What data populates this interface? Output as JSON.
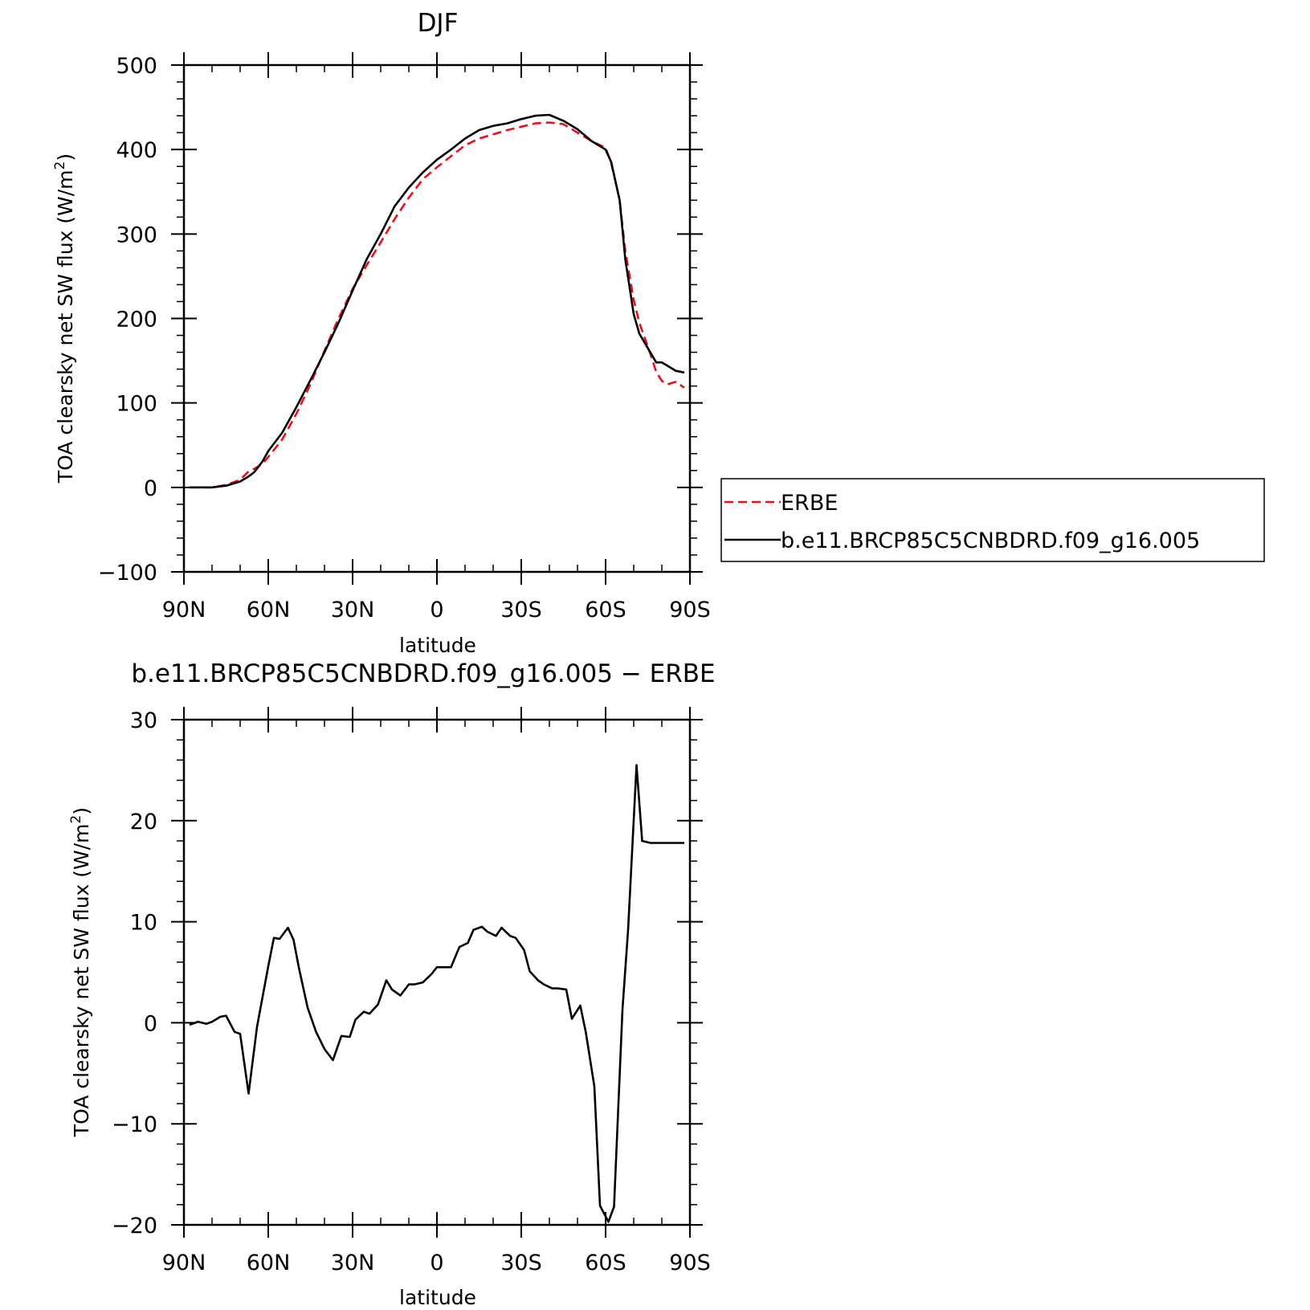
{
  "chart_data": [
    {
      "type": "line",
      "title": "DJF",
      "xlabel": "latitude",
      "ylabel": "TOA clearsky net SW flux (W/m",
      "ylabel_superscript": "2",
      "ylabel_suffix": ")",
      "xlim": [
        90,
        -90
      ],
      "ylim": [
        -100,
        500
      ],
      "x_ticks": [
        90,
        60,
        30,
        0,
        -30,
        -60,
        -90
      ],
      "x_tick_labels": [
        "90N",
        "60N",
        "30N",
        "0",
        "30S",
        "60S",
        "90S"
      ],
      "y_ticks": [
        -100,
        0,
        100,
        200,
        300,
        400,
        500
      ],
      "y_tick_labels": [
        "−100",
        "0",
        "100",
        "200",
        "300",
        "400",
        "500"
      ],
      "legend_position": "right",
      "series": [
        {
          "name": "ERBE",
          "color": "#e8101a",
          "dash": "dashed",
          "x": [
            88,
            85,
            80,
            75,
            70,
            67,
            65,
            62,
            60,
            55,
            50,
            45,
            40,
            35,
            30,
            25,
            20,
            15,
            10,
            5,
            0,
            -5,
            -10,
            -15,
            -20,
            -25,
            -30,
            -35,
            -40,
            -45,
            -50,
            -55,
            -60,
            -62,
            -65,
            -67,
            -70,
            -72,
            -75,
            -78,
            -80,
            -82,
            -85,
            -88
          ],
          "y": [
            0,
            0,
            0,
            3,
            9,
            19,
            22,
            28,
            36,
            57,
            87,
            122,
            162,
            200,
            235,
            263,
            290,
            318,
            343,
            365,
            379,
            392,
            405,
            413,
            418,
            423,
            427,
            431,
            432,
            430,
            420,
            410,
            402,
            384,
            340,
            280,
            222,
            195,
            167,
            137,
            126,
            122,
            125,
            118
          ]
        },
        {
          "name": "b.e11.BRCP85C5CNBDRD.f09_g16.005",
          "color": "#000000",
          "dash": "solid",
          "x": [
            88,
            85,
            80,
            75,
            70,
            67,
            65,
            62,
            60,
            55,
            50,
            45,
            40,
            35,
            30,
            25,
            20,
            15,
            10,
            5,
            0,
            -5,
            -10,
            -15,
            -20,
            -25,
            -30,
            -35,
            -40,
            -45,
            -50,
            -55,
            -60,
            -62,
            -65,
            -67,
            -70,
            -72,
            -75,
            -78,
            -80,
            -82,
            -85,
            -88
          ],
          "y": [
            0,
            0,
            0,
            2,
            7,
            13,
            18,
            31,
            43,
            65,
            95,
            127,
            160,
            195,
            233,
            270,
            300,
            333,
            355,
            373,
            388,
            400,
            413,
            423,
            428,
            431,
            436,
            440,
            441,
            434,
            424,
            410,
            400,
            385,
            340,
            270,
            205,
            182,
            165,
            148,
            148,
            144,
            138,
            136
          ]
        }
      ]
    },
    {
      "type": "line",
      "title": "b.e11.BRCP85C5CNBDRD.f09_g16.005 − ERBE",
      "xlabel": "latitude",
      "ylabel": "TOA clearsky net SW flux (W/m",
      "ylabel_superscript": "2",
      "ylabel_suffix": ")",
      "xlim": [
        90,
        -90
      ],
      "ylim": [
        -20,
        30
      ],
      "x_ticks": [
        90,
        60,
        30,
        0,
        -30,
        -60,
        -90
      ],
      "x_tick_labels": [
        "90N",
        "60N",
        "30N",
        "0",
        "30S",
        "60S",
        "90S"
      ],
      "y_ticks": [
        -20,
        -10,
        0,
        10,
        20,
        30
      ],
      "y_tick_labels": [
        "−20",
        "−10",
        "0",
        "10",
        "20",
        "30"
      ],
      "series": [
        {
          "color": "#000000",
          "dash": "solid",
          "x": [
            88,
            85,
            82,
            80,
            77,
            75,
            72,
            70,
            67,
            64,
            60,
            58,
            56,
            53,
            51,
            49,
            46,
            43,
            40,
            37,
            34,
            31,
            29,
            26,
            24,
            21,
            18,
            16,
            13,
            10,
            8,
            5,
            2,
            0,
            -3,
            -5,
            -8,
            -11,
            -13,
            -16,
            -18,
            -21,
            -23,
            -26,
            -28,
            -31,
            -33,
            -36,
            -38,
            -41,
            -43,
            -46,
            -48,
            -51,
            -53,
            -56,
            -58,
            -61,
            -63,
            -66,
            -68,
            -71,
            -73,
            -76,
            -78,
            -80,
            -83,
            -85,
            -88
          ],
          "y": [
            -0.2,
            0.1,
            -0.1,
            0.1,
            0.6,
            0.7,
            -0.9,
            -1.1,
            -7.0,
            -0.4,
            5.6,
            8.4,
            8.3,
            9.4,
            8.2,
            5.3,
            1.5,
            -0.9,
            -2.6,
            -3.7,
            -1.3,
            -1.4,
            0.3,
            1.1,
            0.9,
            1.8,
            4.2,
            3.3,
            2.7,
            3.8,
            3.8,
            4.0,
            4.8,
            5.5,
            5.5,
            5.5,
            7.5,
            7.9,
            9.2,
            9.5,
            9.0,
            8.6,
            9.4,
            8.6,
            8.4,
            7.2,
            5.1,
            4.2,
            3.8,
            3.4,
            3.4,
            3.3,
            0.4,
            1.7,
            -1.0,
            -6.3,
            -18.1,
            -19.7,
            -18.2,
            1.3,
            9.2,
            25.5,
            18.0,
            17.8,
            17.8,
            17.8,
            17.8,
            17.8,
            17.8
          ]
        }
      ]
    }
  ]
}
